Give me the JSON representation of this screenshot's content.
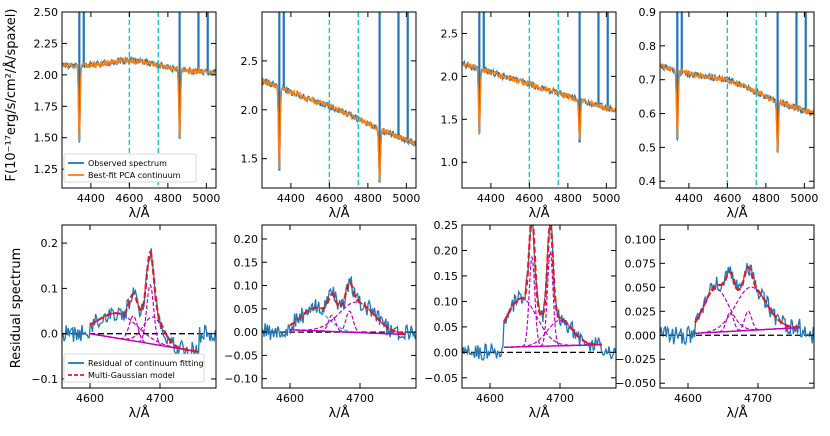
{
  "figure": {
    "ylabel_top": "F(10⁻¹⁷erg/s/cm²/Å/spaxel)",
    "ylabel_bottom": "Residual spectrum",
    "xlabel": "λ/Å"
  },
  "colors": {
    "observed": "#1f77b4",
    "pca": "#ff7f0e",
    "vline": "#17becf",
    "model": "#e41a1c",
    "component": "#c000c0",
    "component2": "#17becf",
    "zero": "#000000"
  },
  "chart_data": [
    {
      "type": "line",
      "row": "top",
      "panel": 1,
      "xlim": [
        4250,
        5050
      ],
      "ylim": [
        1.1,
        2.5
      ],
      "xticks": [
        4400,
        4600,
        4800,
        5000
      ],
      "xticklabels": [
        "4400",
        "4600",
        "4800",
        "5000"
      ],
      "yticks": [
        1.25,
        1.5,
        1.75,
        2.0,
        2.25,
        2.5
      ],
      "yticklabels": [
        "1.25",
        "1.50",
        "1.75",
        "2.00",
        "2.25",
        "2.50"
      ],
      "xlabel": "λ/Å",
      "vlines": [
        4600,
        4750
      ],
      "continuum": {
        "start": 2.08,
        "end": 2.02,
        "bump": 0.06
      },
      "absorptions": [
        [
          4340,
          0.6
        ],
        [
          4861,
          0.55
        ]
      ],
      "emission_spikes": [
        4340,
        4363,
        4861,
        4959,
        5007
      ],
      "legend": {
        "entries": [
          "Observed spectrum",
          "Best-fit PCA continuum"
        ],
        "location": "lower left"
      }
    },
    {
      "type": "line",
      "row": "top",
      "panel": 2,
      "xlim": [
        4250,
        5050
      ],
      "ylim": [
        1.2,
        3.0
      ],
      "xticks": [
        4400,
        4600,
        4800,
        5000
      ],
      "xticklabels": [
        "4400",
        "4600",
        "4800",
        "5000"
      ],
      "yticks": [
        1.5,
        2.0,
        2.5
      ],
      "yticklabels": [
        "1.5",
        "2.0",
        "2.5"
      ],
      "xlabel": "λ/Å",
      "vlines": [
        4600,
        4750
      ],
      "continuum": {
        "start": 2.3,
        "end": 1.65,
        "bump": 0.02
      },
      "absorptions": [
        [
          4340,
          0.85
        ],
        [
          4861,
          0.55
        ]
      ],
      "emission_spikes": [
        4340,
        4363,
        4861,
        4959,
        5007
      ]
    },
    {
      "type": "line",
      "row": "top",
      "panel": 3,
      "xlim": [
        4250,
        5050
      ],
      "ylim": [
        0.7,
        2.75
      ],
      "xticks": [
        4400,
        4600,
        4800,
        5000
      ],
      "xticklabels": [
        "4400",
        "4600",
        "4800",
        "5000"
      ],
      "yticks": [
        1.0,
        1.5,
        2.0,
        2.5
      ],
      "yticklabels": [
        "1.0",
        "1.5",
        "2.0",
        "2.5"
      ],
      "xlabel": "λ/Å",
      "vlines": [
        4600,
        4750
      ],
      "continuum": {
        "start": 2.15,
        "end": 1.6,
        "bump": 0.0
      },
      "absorptions": [
        [
          4340,
          0.75
        ],
        [
          4861,
          0.5
        ]
      ],
      "emission_spikes": [
        4340,
        4363,
        4861,
        4959,
        5007
      ]
    },
    {
      "type": "line",
      "row": "top",
      "panel": 4,
      "xlim": [
        4250,
        5050
      ],
      "ylim": [
        0.38,
        0.9
      ],
      "xticks": [
        4400,
        4600,
        4800,
        5000
      ],
      "xticklabels": [
        "4400",
        "4600",
        "4800",
        "5000"
      ],
      "yticks": [
        0.4,
        0.5,
        0.6,
        0.7,
        0.8,
        0.9
      ],
      "yticklabels": [
        "0.4",
        "0.5",
        "0.6",
        "0.7",
        "0.8",
        "0.9"
      ],
      "xlabel": "λ/Å",
      "vlines": [
        4600,
        4750
      ],
      "continuum": {
        "start": 0.74,
        "end": 0.6,
        "bump": 0.02
      },
      "absorptions": [
        [
          4340,
          0.2
        ],
        [
          4861,
          0.15
        ]
      ],
      "emission_spikes": [
        4340,
        4363,
        4861,
        4959,
        5007
      ]
    },
    {
      "type": "line",
      "row": "bottom",
      "panel": 1,
      "xlim": [
        4560,
        4780
      ],
      "ylim": [
        -0.12,
        0.24
      ],
      "xticks": [
        4600,
        4700
      ],
      "xticklabels": [
        "4600",
        "4700"
      ],
      "yticks": [
        -0.1,
        0.0,
        0.1,
        0.2
      ],
      "yticklabels": [
        "−0.1",
        "0.0",
        "0.1",
        "0.2"
      ],
      "xlabel": "λ/Å",
      "baseline": [
        4600,
        0.0,
        4755,
        -0.04
      ],
      "components": [
        [
          4640,
          0.055,
          28
        ],
        [
          4662,
          0.055,
          6
        ],
        [
          4686,
          0.13,
          5
        ],
        [
          4690,
          0.06,
          14
        ]
      ],
      "model_range": [
        4600,
        4755
      ],
      "legend": {
        "entries": [
          "Residual of continuum fitting",
          "Multi-Gaussian model"
        ],
        "location": "lower left"
      }
    },
    {
      "type": "line",
      "row": "bottom",
      "panel": 2,
      "xlim": [
        4560,
        4780
      ],
      "ylim": [
        -0.12,
        0.23
      ],
      "xticks": [
        4600,
        4700
      ],
      "xticklabels": [
        "4600",
        "4700"
      ],
      "yticks": [
        -0.1,
        -0.05,
        0.0,
        0.05,
        0.1,
        0.15,
        0.2
      ],
      "yticklabels": [
        "−0.10",
        "−0.05",
        "0.00",
        "0.05",
        "0.10",
        "0.15",
        "0.20"
      ],
      "xlabel": "λ/Å",
      "baseline": [
        4600,
        0.005,
        4765,
        -0.005
      ],
      "components": [
        [
          4635,
          0.045,
          20
        ],
        [
          4660,
          0.035,
          5
        ],
        [
          4685,
          0.045,
          5
        ],
        [
          4695,
          0.065,
          25
        ]
      ],
      "model_range": [
        4600,
        4765
      ]
    },
    {
      "type": "line",
      "row": "bottom",
      "panel": 3,
      "xlim": [
        4560,
        4780
      ],
      "ylim": [
        -0.07,
        0.25
      ],
      "xticks": [
        4600,
        4700
      ],
      "xticklabels": [
        "4600",
        "4700"
      ],
      "yticks": [
        -0.05,
        0.0,
        0.05,
        0.1,
        0.15,
        0.2,
        0.25
      ],
      "yticklabels": [
        "−0.05",
        "0.00",
        "0.05",
        "0.10",
        "0.15",
        "0.20",
        "0.25"
      ],
      "xlabel": "λ/Å",
      "baseline": [
        4620,
        0.01,
        4760,
        0.015
      ],
      "components": [
        [
          4645,
          0.095,
          22
        ],
        [
          4660,
          0.175,
          4
        ],
        [
          4686,
          0.185,
          4
        ],
        [
          4700,
          0.05,
          18
        ]
      ],
      "model_range": [
        4620,
        4760
      ]
    },
    {
      "type": "line",
      "row": "bottom",
      "panel": 4,
      "xlim": [
        4560,
        4780
      ],
      "ylim": [
        -0.055,
        0.115
      ],
      "xticks": [
        4600,
        4700
      ],
      "xticklabels": [
        "4600",
        "4700"
      ],
      "yticks": [
        -0.05,
        -0.025,
        0.0,
        0.025,
        0.05,
        0.075,
        0.1
      ],
      "yticklabels": [
        "−0.050",
        "−0.025",
        "0.000",
        "0.025",
        "0.050",
        "0.075",
        "0.100"
      ],
      "xlabel": "λ/Å",
      "baseline": [
        4610,
        0.002,
        4760,
        0.008
      ],
      "components": [
        [
          4640,
          0.045,
          18
        ],
        [
          4660,
          0.02,
          5
        ],
        [
          4686,
          0.02,
          5
        ],
        [
          4690,
          0.045,
          22
        ]
      ],
      "model_range": [
        4610,
        4760
      ]
    }
  ]
}
